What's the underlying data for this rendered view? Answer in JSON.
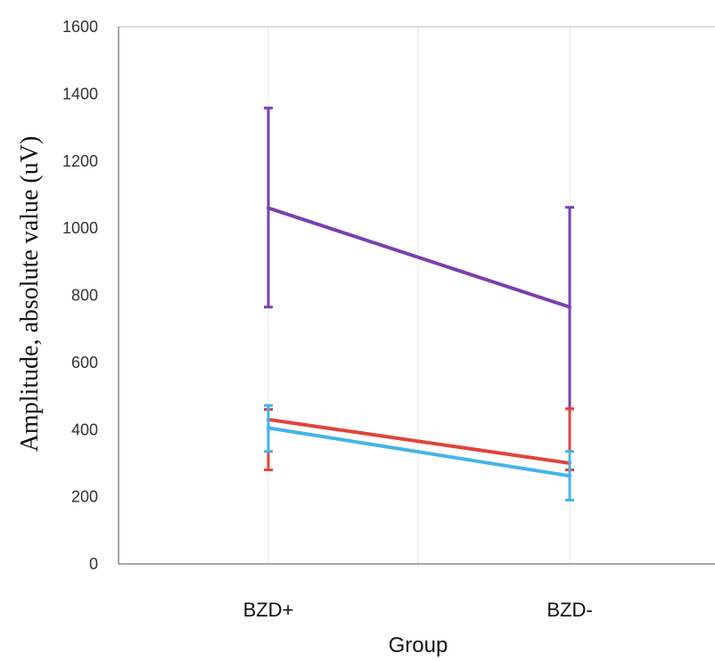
{
  "chart_data": {
    "type": "line",
    "title": "",
    "xlabel": "Group",
    "ylabel": "Amplitude, absolute value (uV)",
    "categories": [
      "BZD+",
      "BZD-"
    ],
    "ylim": [
      0,
      1600
    ],
    "yticks": [
      0,
      200,
      400,
      600,
      800,
      1000,
      1200,
      1400,
      1600
    ],
    "grid": "vertical",
    "legend": "none",
    "series": [
      {
        "color": "#7a3fb0",
        "values": [
          1060,
          765
        ],
        "err_low": [
          765,
          462
        ],
        "err_high": [
          1358,
          1062
        ]
      },
      {
        "color": "#e0443a",
        "values": [
          430,
          300
        ],
        "err_low": [
          280,
          280
        ],
        "err_high": [
          460,
          462
        ]
      },
      {
        "color": "#45b4e8",
        "values": [
          405,
          262
        ],
        "err_low": [
          335,
          190
        ],
        "err_high": [
          472,
          335
        ]
      }
    ]
  }
}
